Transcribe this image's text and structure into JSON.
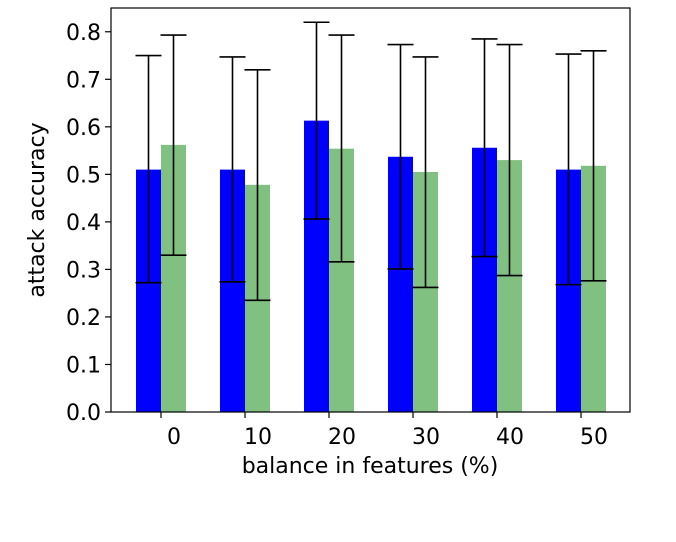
{
  "chart_data": {
    "type": "bar",
    "title": "",
    "xlabel": "balance in features (%)",
    "ylabel": "attack accuracy",
    "categories": [
      "0",
      "10",
      "20",
      "30",
      "40",
      "50"
    ],
    "ylim": [
      0.0,
      0.85
    ],
    "yticks": [
      0.0,
      0.1,
      0.2,
      0.3,
      0.4,
      0.5,
      0.6,
      0.7,
      0.8
    ],
    "ytick_labels": [
      "0.0",
      "0.1",
      "0.2",
      "0.3",
      "0.4",
      "0.5",
      "0.6",
      "0.7",
      "0.8"
    ],
    "grid": false,
    "legend": "none",
    "error_bars": true,
    "series": [
      {
        "color": "#0000ff",
        "values": [
          0.51,
          0.51,
          0.613,
          0.537,
          0.556,
          0.51
        ],
        "err_low": [
          0.272,
          0.274,
          0.406,
          0.301,
          0.327,
          0.268
        ],
        "err_high": [
          0.75,
          0.747,
          0.82,
          0.773,
          0.785,
          0.753
        ]
      },
      {
        "color": "#80c080",
        "values": [
          0.562,
          0.478,
          0.554,
          0.505,
          0.53,
          0.518
        ],
        "err_low": [
          0.33,
          0.235,
          0.316,
          0.262,
          0.287,
          0.276
        ],
        "err_high": [
          0.793,
          0.72,
          0.793,
          0.747,
          0.773,
          0.76
        ]
      }
    ]
  }
}
